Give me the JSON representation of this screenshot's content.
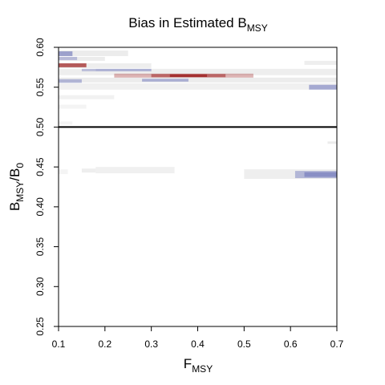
{
  "chart_data": {
    "type": "heatmap",
    "title": {
      "main": "Bias in Estimated B",
      "sub": "MSY"
    },
    "xlabel": {
      "main": "F",
      "sub": "MSY"
    },
    "ylabel": {
      "main": "B",
      "sub1": "MSY",
      "sep": "/B",
      "sub2": "0"
    },
    "xlim": [
      0.1,
      0.7
    ],
    "ylim": [
      0.25,
      0.6
    ],
    "xticks": [
      "0.1",
      "0.2",
      "0.3",
      "0.4",
      "0.5",
      "0.6",
      "0.7"
    ],
    "yticks": [
      "0.25",
      "0.30",
      "0.35",
      "0.40",
      "0.45",
      "0.50",
      "0.55",
      "0.60"
    ],
    "reference_line": {
      "y": 0.5,
      "color": "#000000"
    },
    "grid": false,
    "legend": "none",
    "colors": {
      "positive": "#a02828",
      "negative": "#6870b8",
      "neutral": "#c8c8c8"
    },
    "cells": [
      {
        "x0": 0.1,
        "x1": 0.25,
        "y0": 0.589,
        "y1": 0.596,
        "bias": 0.0,
        "alpha": 0.35
      },
      {
        "x0": 0.1,
        "x1": 0.13,
        "y0": 0.589,
        "y1": 0.595,
        "bias": -0.6,
        "alpha": 0.6
      },
      {
        "x0": 0.1,
        "x1": 0.2,
        "y0": 0.583,
        "y1": 0.588,
        "bias": 0.0,
        "alpha": 0.35
      },
      {
        "x0": 0.1,
        "x1": 0.14,
        "y0": 0.584,
        "y1": 0.588,
        "bias": -0.3,
        "alpha": 0.4
      },
      {
        "x0": 0.1,
        "x1": 0.3,
        "y0": 0.574,
        "y1": 0.58,
        "bias": 0.0,
        "alpha": 0.3
      },
      {
        "x0": 0.1,
        "x1": 0.16,
        "y0": 0.575,
        "y1": 0.58,
        "bias": 0.7,
        "alpha": 0.75
      },
      {
        "x0": 0.1,
        "x1": 0.7,
        "y0": 0.565,
        "y1": 0.573,
        "bias": 0.0,
        "alpha": 0.3
      },
      {
        "x0": 0.18,
        "x1": 0.3,
        "y0": 0.57,
        "y1": 0.573,
        "bias": -0.4,
        "alpha": 0.5
      },
      {
        "x0": 0.15,
        "x1": 0.18,
        "y0": 0.57,
        "y1": 0.573,
        "bias": -0.3,
        "alpha": 0.4
      },
      {
        "x0": 0.22,
        "x1": 0.52,
        "y0": 0.562,
        "y1": 0.567,
        "bias": 0.25,
        "alpha": 0.35
      },
      {
        "x0": 0.3,
        "x1": 0.46,
        "y0": 0.5625,
        "y1": 0.5665,
        "bias": 0.6,
        "alpha": 0.55
      },
      {
        "x0": 0.34,
        "x1": 0.42,
        "y0": 0.5628,
        "y1": 0.5662,
        "bias": 0.9,
        "alpha": 0.85
      },
      {
        "x0": 0.1,
        "x1": 0.7,
        "y0": 0.556,
        "y1": 0.562,
        "bias": 0.0,
        "alpha": 0.35
      },
      {
        "x0": 0.28,
        "x1": 0.38,
        "y0": 0.557,
        "y1": 0.5605,
        "bias": -0.5,
        "alpha": 0.5
      },
      {
        "x0": 0.1,
        "x1": 0.15,
        "y0": 0.5555,
        "y1": 0.56,
        "bias": -0.4,
        "alpha": 0.45
      },
      {
        "x0": 0.1,
        "x1": 0.7,
        "y0": 0.547,
        "y1": 0.555,
        "bias": 0.0,
        "alpha": 0.28
      },
      {
        "x0": 0.64,
        "x1": 0.7,
        "y0": 0.547,
        "y1": 0.553,
        "bias": -0.6,
        "alpha": 0.55
      },
      {
        "x0": 0.1,
        "x1": 0.22,
        "y0": 0.535,
        "y1": 0.54,
        "bias": 0.0,
        "alpha": 0.25
      },
      {
        "x0": 0.1,
        "x1": 0.16,
        "y0": 0.523,
        "y1": 0.528,
        "bias": 0.0,
        "alpha": 0.2
      },
      {
        "x0": 0.63,
        "x1": 0.7,
        "y0": 0.578,
        "y1": 0.583,
        "bias": 0.0,
        "alpha": 0.3
      },
      {
        "x0": 0.1,
        "x1": 0.13,
        "y0": 0.503,
        "y1": 0.507,
        "bias": 0.0,
        "alpha": 0.2
      },
      {
        "x0": 0.68,
        "x1": 0.7,
        "y0": 0.479,
        "y1": 0.482,
        "bias": 0.0,
        "alpha": 0.35
      },
      {
        "x0": 0.1,
        "x1": 0.12,
        "y0": 0.441,
        "y1": 0.447,
        "bias": 0.0,
        "alpha": 0.2
      },
      {
        "x0": 0.15,
        "x1": 0.18,
        "y0": 0.443,
        "y1": 0.448,
        "bias": 0.0,
        "alpha": 0.3
      },
      {
        "x0": 0.18,
        "x1": 0.35,
        "y0": 0.442,
        "y1": 0.45,
        "bias": 0.0,
        "alpha": 0.28
      },
      {
        "x0": 0.5,
        "x1": 0.7,
        "y0": 0.435,
        "y1": 0.447,
        "bias": 0.0,
        "alpha": 0.3
      },
      {
        "x0": 0.61,
        "x1": 0.7,
        "y0": 0.436,
        "y1": 0.445,
        "bias": -0.4,
        "alpha": 0.45
      },
      {
        "x0": 0.63,
        "x1": 0.7,
        "y0": 0.4375,
        "y1": 0.4435,
        "bias": -0.6,
        "alpha": 0.55
      }
    ]
  }
}
